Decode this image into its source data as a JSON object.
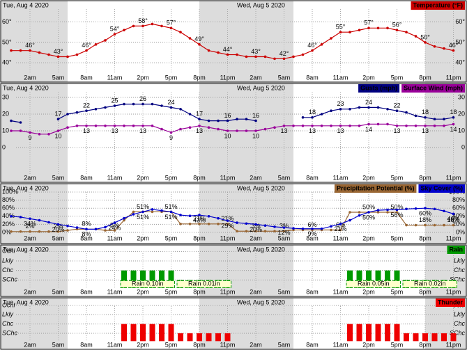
{
  "hours": [
    null,
    null,
    "2am",
    null,
    null,
    "5am",
    null,
    null,
    "8am",
    null,
    null,
    "11am",
    null,
    null,
    "2pm",
    null,
    null,
    "5pm",
    null,
    null,
    "8pm",
    null,
    null,
    "11pm",
    null,
    null,
    "2am",
    null,
    null,
    "5am",
    null,
    null,
    "8am",
    null,
    null,
    "11am",
    null,
    null,
    "2pm",
    null,
    null,
    "5pm",
    null,
    null,
    "8pm",
    null,
    null,
    "11pm"
  ],
  "days": [
    "Tue, Aug 4 2020",
    "Wed, Aug 5 2020"
  ],
  "night_hours": [
    [
      0,
      6
    ],
    [
      20,
      30
    ],
    [
      44,
      47
    ]
  ],
  "chart_data": [
    {
      "type": "line",
      "series": [
        {
          "name": "Temperature (°F)",
          "color": "#cc0000",
          "values": [
            46,
            46,
            46,
            45,
            44,
            43,
            43,
            44,
            46,
            49,
            51,
            54,
            56,
            58,
            58,
            59,
            58,
            57,
            55,
            52,
            49,
            46,
            45,
            44,
            44,
            43,
            43,
            43,
            42,
            42,
            43,
            44,
            46,
            49,
            52,
            55,
            55,
            56,
            57,
            57,
            57,
            56,
            55,
            53,
            50,
            48,
            47,
            46
          ],
          "value_labels": [
            null,
            null,
            "46°",
            null,
            null,
            "43°",
            null,
            null,
            "46°",
            null,
            null,
            "54°",
            null,
            null,
            "58°",
            null,
            null,
            "57°",
            null,
            null,
            "49°",
            null,
            null,
            "44°",
            null,
            null,
            "43°",
            null,
            null,
            "42°",
            null,
            null,
            "46°",
            null,
            null,
            "55°",
            null,
            null,
            "57°",
            null,
            null,
            "56°",
            null,
            null,
            "50°",
            null,
            null,
            "46°"
          ]
        }
      ],
      "ylim": [
        35,
        68
      ],
      "yticks": [
        {
          "value": 60,
          "label": "60°"
        },
        {
          "value": 50,
          "label": "50°"
        },
        {
          "value": 40,
          "label": "40°"
        }
      ]
    },
    {
      "type": "line",
      "series": [
        {
          "name": "Gusts (mph)",
          "color": "#000080",
          "values": [
            16,
            15,
            null,
            null,
            null,
            17,
            20,
            21,
            22,
            23,
            24,
            25,
            26,
            26,
            26,
            26,
            25,
            24,
            23,
            20,
            17,
            16,
            16,
            16,
            17,
            17,
            16,
            null,
            null,
            null,
            null,
            18,
            18,
            20,
            22,
            23,
            23,
            24,
            24,
            24,
            23,
            22,
            21,
            19,
            18,
            17,
            17,
            18
          ]
        },
        {
          "name": "Surface Wind (mph)",
          "color": "#990099",
          "values": [
            10,
            10,
            9,
            8,
            8,
            10,
            12,
            13,
            13,
            13,
            13,
            13,
            13,
            13,
            13,
            13,
            11,
            9,
            11,
            12,
            13,
            12,
            11,
            10,
            10,
            10,
            10,
            11,
            12,
            13,
            13,
            13,
            13,
            13,
            13,
            13,
            13,
            13,
            14,
            14,
            14,
            13,
            13,
            13,
            13,
            13,
            13,
            14
          ]
        }
      ],
      "ylim": [
        -15,
        35
      ],
      "yticks": [
        30,
        20,
        10,
        0
      ]
    },
    {
      "type": "line",
      "series": [
        {
          "name": "Precipitation Potential (%)",
          "color": "#996633",
          "values": [
            2,
            2,
            2,
            2,
            2,
            2,
            5,
            8,
            8,
            8,
            5,
            5,
            30,
            51,
            51,
            51,
            51,
            51,
            21,
            21,
            21,
            21,
            21,
            21,
            3,
            3,
            3,
            3,
            3,
            3,
            6,
            6,
            6,
            6,
            6,
            6,
            50,
            50,
            50,
            50,
            50,
            50,
            18,
            18,
            18,
            18,
            18,
            18
          ],
          "value_labels": [
            null,
            null,
            "2%",
            null,
            null,
            "2%",
            null,
            null,
            "8%",
            null,
            null,
            "5%",
            null,
            null,
            "51%",
            null,
            null,
            "51%",
            null,
            null,
            "21%",
            null,
            null,
            "21%",
            null,
            null,
            "3%",
            null,
            null,
            "3%",
            null,
            null,
            "6%",
            null,
            null,
            "6%",
            null,
            null,
            "50%",
            null,
            null,
            "50%",
            null,
            null,
            "18%",
            null,
            null,
            "18%"
          ]
        },
        {
          "name": "Sky Cover (%)",
          "color": "#0000cc",
          "values": [
            40,
            38,
            34,
            30,
            25,
            20,
            16,
            12,
            8,
            8,
            13,
            24,
            35,
            45,
            51,
            57,
            54,
            51,
            43,
            41,
            43,
            40,
            35,
            29,
            24,
            22,
            20,
            17,
            14,
            12,
            10,
            9,
            9,
            9,
            15,
            21,
            30,
            42,
            50,
            55,
            56,
            56,
            58,
            59,
            60,
            58,
            53,
            46
          ],
          "value_labels": [
            null,
            null,
            "34%",
            null,
            null,
            "20%",
            null,
            null,
            "8%",
            null,
            null,
            "24%",
            null,
            null,
            "51%",
            null,
            null,
            "51%",
            null,
            null,
            "43%",
            null,
            null,
            "29%",
            null,
            null,
            "20%",
            null,
            null,
            "12%",
            null,
            null,
            "9%",
            null,
            null,
            "21%",
            null,
            null,
            "50%",
            null,
            null,
            "56%",
            null,
            null,
            "60%",
            null,
            null,
            "46%"
          ]
        }
      ],
      "ylim": [
        0,
        100
      ],
      "yticks": [
        {
          "value": 100,
          "label": "100%"
        },
        {
          "value": 80,
          "label": "80%"
        },
        {
          "value": 60,
          "label": "60%"
        },
        {
          "value": 40,
          "label": "40%"
        },
        {
          "value": 20,
          "label": "20%"
        },
        {
          "value": 0,
          "label": "0%"
        }
      ]
    },
    {
      "type": "bar",
      "series": [
        {
          "name": "Rain",
          "color": "#009900",
          "values": [
            null,
            null,
            null,
            null,
            null,
            null,
            null,
            null,
            null,
            null,
            null,
            null,
            2,
            2,
            2,
            2,
            2,
            2,
            1,
            1,
            1,
            1,
            1,
            1,
            null,
            null,
            null,
            null,
            null,
            null,
            null,
            null,
            null,
            null,
            null,
            null,
            2,
            2,
            2,
            2,
            2,
            2,
            1,
            1,
            1,
            1,
            1,
            1
          ]
        }
      ],
      "annotations": [
        "Rain 0.10in",
        "Rain 0.01in",
        "Rain 0.05in",
        "Rain 0.02in"
      ],
      "ylim": [
        0,
        4.5
      ],
      "yticks": [
        {
          "value": 4,
          "label": "Ocnl"
        },
        {
          "value": 3,
          "label": "Lkly"
        },
        {
          "value": 2,
          "label": "Chc"
        },
        {
          "value": 1,
          "label": "SChc"
        }
      ]
    },
    {
      "type": "bar",
      "series": [
        {
          "name": "Thunder",
          "color": "#ee0000",
          "values": [
            null,
            null,
            null,
            null,
            null,
            null,
            null,
            null,
            null,
            null,
            null,
            null,
            2,
            2,
            2,
            2,
            2,
            2,
            1,
            1,
            1,
            1,
            1,
            1,
            null,
            null,
            null,
            null,
            null,
            null,
            null,
            null,
            null,
            null,
            null,
            null,
            2,
            2,
            2,
            2,
            2,
            2,
            1,
            1,
            1,
            1,
            1,
            1
          ]
        }
      ],
      "ylim": [
        0,
        4.5
      ],
      "yticks": [
        {
          "value": 4,
          "label": "Ocnl"
        },
        {
          "value": 3,
          "label": "Lkly"
        },
        {
          "value": 2,
          "label": "Chc"
        },
        {
          "value": 1,
          "label": "SChc"
        }
      ]
    }
  ]
}
